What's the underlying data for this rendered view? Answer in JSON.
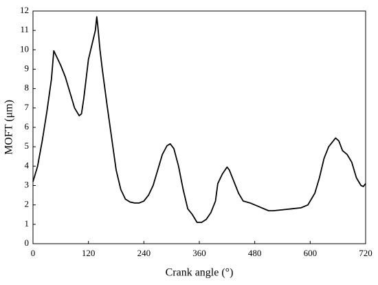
{
  "chart_data": {
    "type": "line",
    "xlabel": "Crank angle (°)",
    "ylabel": "MOFT (μm)",
    "x": [
      0,
      10,
      20,
      30,
      40,
      45,
      50,
      60,
      70,
      80,
      90,
      100,
      105,
      110,
      115,
      120,
      130,
      135,
      138,
      140,
      145,
      150,
      160,
      170,
      180,
      190,
      200,
      210,
      220,
      230,
      240,
      250,
      260,
      270,
      280,
      290,
      297,
      305,
      315,
      325,
      335,
      345,
      355,
      365,
      375,
      385,
      395,
      400,
      410,
      420,
      425,
      435,
      445,
      455,
      470,
      490,
      510,
      520,
      540,
      560,
      580,
      595,
      610,
      620,
      630,
      640,
      650,
      655,
      662,
      670,
      680,
      690,
      700,
      710,
      715,
      720
    ],
    "values": [
      3.2,
      4.0,
      5.3,
      6.8,
      8.5,
      9.95,
      9.7,
      9.2,
      8.6,
      7.8,
      7.0,
      6.6,
      6.7,
      7.5,
      8.5,
      9.5,
      10.5,
      11.0,
      11.7,
      11.3,
      10.0,
      9.0,
      7.2,
      5.5,
      3.8,
      2.8,
      2.3,
      2.15,
      2.1,
      2.1,
      2.2,
      2.5,
      3.0,
      3.8,
      4.6,
      5.05,
      5.15,
      4.9,
      4.0,
      2.8,
      1.8,
      1.5,
      1.1,
      1.1,
      1.25,
      1.6,
      2.2,
      3.1,
      3.6,
      3.95,
      3.8,
      3.2,
      2.6,
      2.2,
      2.1,
      1.9,
      1.7,
      1.7,
      1.75,
      1.8,
      1.85,
      2.0,
      2.6,
      3.4,
      4.4,
      5.0,
      5.3,
      5.45,
      5.3,
      4.8,
      4.6,
      4.2,
      3.4,
      3.0,
      2.95,
      3.1
    ],
    "color": "#000000",
    "xlim": [
      0,
      720
    ],
    "xticks": [
      0,
      120,
      240,
      360,
      480,
      600,
      720
    ],
    "ylim": [
      0,
      12
    ],
    "yticks": [
      0,
      1,
      2,
      3,
      4,
      5,
      6,
      7,
      8,
      9,
      10,
      11,
      12
    ]
  }
}
